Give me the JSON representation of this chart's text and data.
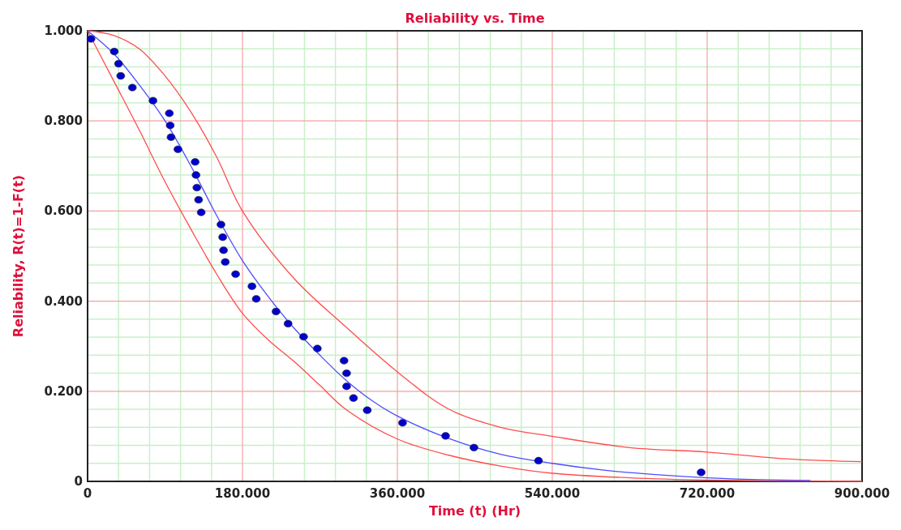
{
  "chart_data": {
    "type": "scatter",
    "title": "Reliability vs. Time",
    "xlabel": "Time (t) (Hr)",
    "ylabel": "Reliability, R(t)=1-F(t)",
    "xlim": [
      0,
      900
    ],
    "ylim": [
      0,
      1
    ],
    "xticks": [
      0,
      {
        "value": 180,
        "label": "180.000"
      },
      {
        "value": 360,
        "label": "360.000"
      },
      {
        "value": 540,
        "label": "540.000"
      },
      {
        "value": 720,
        "label": "720.000"
      },
      {
        "value": 900,
        "label": "900.000"
      }
    ],
    "yticks": [
      0,
      {
        "value": 0.2,
        "label": "0.200"
      },
      {
        "value": 0.4,
        "label": "0.400"
      },
      {
        "value": 0.6,
        "label": "0.600"
      },
      {
        "value": 0.8,
        "label": "0.800"
      },
      {
        "value": 1,
        "label": "1.000"
      }
    ],
    "grid": true,
    "series": [
      {
        "type": "line",
        "color": "#ff4d4d",
        "x": [
          0,
          30,
          60,
          90,
          120,
          150,
          180,
          240,
          300,
          360,
          420,
          480,
          540,
          630,
          720,
          810,
          900
        ],
        "values": [
          1,
          0.99,
          0.96,
          0.9,
          0.82,
          0.72,
          0.6,
          0.45,
          0.343,
          0.243,
          0.16,
          0.12,
          0.1,
          0.075,
          0.065,
          0.05,
          0.044
        ]
      },
      {
        "type": "line",
        "color": "#ff4d4d",
        "x": [
          0,
          30,
          60,
          90,
          120,
          150,
          180,
          210,
          240,
          270,
          300,
          360,
          420,
          480,
          540,
          630,
          720,
          900
        ],
        "values": [
          1,
          0.89,
          0.78,
          0.665,
          0.56,
          0.46,
          0.373,
          0.314,
          0.266,
          0.213,
          0.16,
          0.094,
          0.058,
          0.034,
          0.018,
          0.008,
          0.003,
          0
        ]
      },
      {
        "type": "line",
        "color": "#4d4dff",
        "x": [
          0,
          30,
          60,
          90,
          120,
          150,
          180,
          210,
          240,
          270,
          300,
          330,
          360,
          420,
          480,
          540,
          600,
          660,
          720,
          780,
          840
        ],
        "values": [
          1,
          0.95,
          0.88,
          0.8,
          0.7,
          0.59,
          0.49,
          0.41,
          0.34,
          0.28,
          0.225,
          0.18,
          0.145,
          0.095,
          0.06,
          0.04,
          0.025,
          0.015,
          0.008,
          0.004,
          0.002
        ]
      },
      {
        "color": "#0000cc",
        "marker": "circle",
        "x": [
          4,
          31,
          36,
          38.5,
          52,
          76,
          95,
          96,
          97,
          105,
          125,
          126,
          127,
          129,
          132,
          155,
          157,
          158,
          160,
          172,
          191,
          196,
          219,
          233,
          251,
          267,
          298,
          301,
          301,
          309,
          325,
          366,
          416,
          449,
          524,
          713
        ],
        "values": [
          0.982,
          0.954,
          0.927,
          0.9,
          0.874,
          0.845,
          0.817,
          0.79,
          0.764,
          0.737,
          0.709,
          0.68,
          0.652,
          0.625,
          0.597,
          0.57,
          0.542,
          0.513,
          0.487,
          0.46,
          0.433,
          0.405,
          0.377,
          0.35,
          0.321,
          0.295,
          0.268,
          0.24,
          0.211,
          0.185,
          0.158,
          0.13,
          0.101,
          0.075,
          0.046,
          0.02
        ]
      }
    ]
  }
}
